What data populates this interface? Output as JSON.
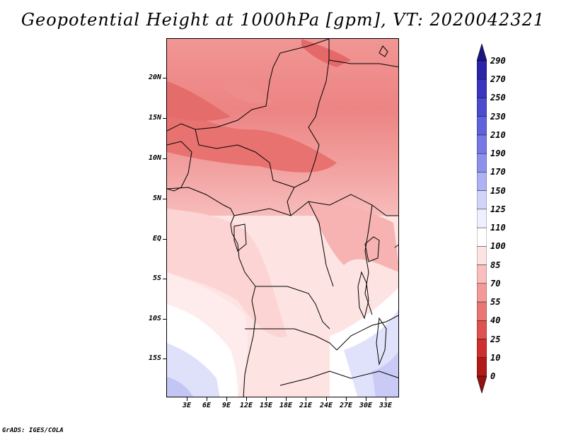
{
  "title": "Geopotential Height at 1000hPa [gpm], VT: 2020042321",
  "credit": "GrADS: IGES/COLA",
  "map": {
    "lat_labels": [
      "20N",
      "15N",
      "10N",
      "5N",
      "EQ",
      "5S",
      "10S",
      "15S"
    ],
    "lon_labels": [
      "3E",
      "6E",
      "9E",
      "12E",
      "15E",
      "18E",
      "21E",
      "24E",
      "27E",
      "30E",
      "33E"
    ]
  },
  "colorbar": {
    "labels": [
      "290",
      "270",
      "250",
      "230",
      "210",
      "190",
      "170",
      "150",
      "125",
      "110",
      "100",
      "85",
      "70",
      "55",
      "40",
      "25",
      "10",
      "0"
    ],
    "colors": [
      "#1b1583",
      "#2a24a6",
      "#3a36bd",
      "#4c4bd0",
      "#6062db",
      "#7678e4",
      "#8e91ec",
      "#aeb1f2",
      "#d2d4f8",
      "#eef0ff",
      "#ffffff",
      "#fde3e2",
      "#f8bfbe",
      "#f29b9a",
      "#e97675",
      "#de5250",
      "#cd302e",
      "#b01a18",
      "#95100e"
    ]
  }
}
